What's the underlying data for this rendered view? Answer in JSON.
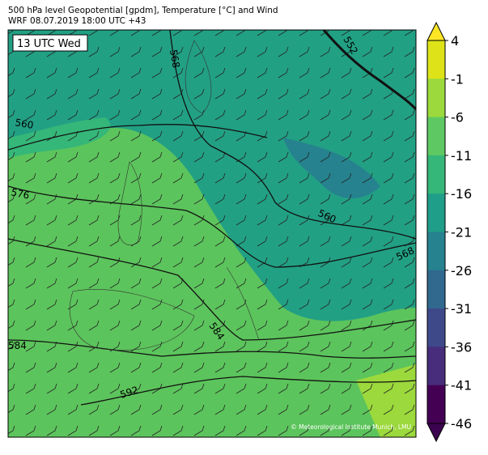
{
  "header": {
    "line1": "500 hPa level Geopotential [gpdm], Temperature [°C] and Wind",
    "line2": "WRF 08.07.2019 18:00 UTC +43"
  },
  "time_label": "13 UTC Wed",
  "credit": "© Meteorological Institute Munich, LMU",
  "contour_labels": [
    "552",
    "568",
    "560",
    "576",
    "560",
    "568",
    "584",
    "584",
    "592"
  ],
  "colorbar": {
    "ticks": [
      4,
      -1,
      -6,
      -11,
      -16,
      -21,
      -26,
      -31,
      -36,
      -41,
      -46
    ],
    "colors": [
      "#dde318",
      "#9bd93c",
      "#5ec962",
      "#35b779",
      "#1f9e89",
      "#26828e",
      "#31688e",
      "#3e4989",
      "#472d7b",
      "#440154"
    ],
    "extend_top_color": "#fde725",
    "extend_bottom_color": "#3b0350"
  }
}
